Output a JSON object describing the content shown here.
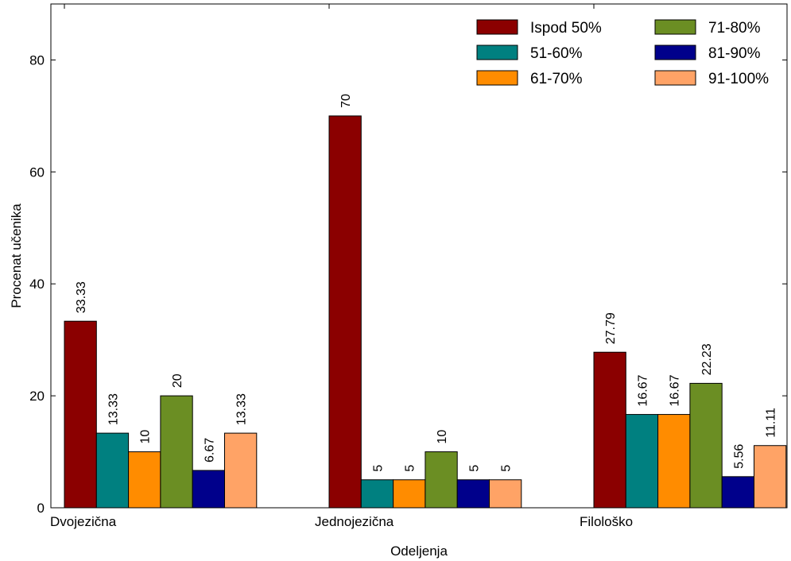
{
  "chart_data": {
    "type": "bar",
    "xlabel": "Odeljenja",
    "ylabel": "Procenat učenika",
    "ylim": [
      0,
      90
    ],
    "yticks": [
      0,
      20,
      40,
      60,
      80
    ],
    "grid": false,
    "legend_position": "top-right",
    "categories": [
      "Dvojezična",
      "Jednojezična",
      "Filološko"
    ],
    "series": [
      {
        "name": "Ispod 50%",
        "color": "#8b0000",
        "values": [
          33.33,
          70,
          27.79
        ],
        "labels": [
          "33.33",
          "70",
          "27.79"
        ]
      },
      {
        "name": "51-60%",
        "color": "#008080",
        "values": [
          13.33,
          5,
          16.67
        ],
        "labels": [
          "13.33",
          "5",
          "16.67"
        ]
      },
      {
        "name": "61-70%",
        "color": "#ff8c00",
        "values": [
          10,
          5,
          16.67
        ],
        "labels": [
          "10",
          "5",
          "16.67"
        ]
      },
      {
        "name": "71-80%",
        "color": "#6b8e23",
        "values": [
          20,
          10,
          22.23
        ],
        "labels": [
          "20",
          "10",
          "22.23"
        ]
      },
      {
        "name": "81-90%",
        "color": "#00008b",
        "values": [
          6.67,
          5,
          5.56
        ],
        "labels": [
          "6.67",
          "5",
          "5.56"
        ]
      },
      {
        "name": "91-100%",
        "color": "#ffa366",
        "values": [
          13.33,
          5,
          11.11
        ],
        "labels": [
          "13.33",
          "5",
          "11.11"
        ]
      }
    ]
  }
}
